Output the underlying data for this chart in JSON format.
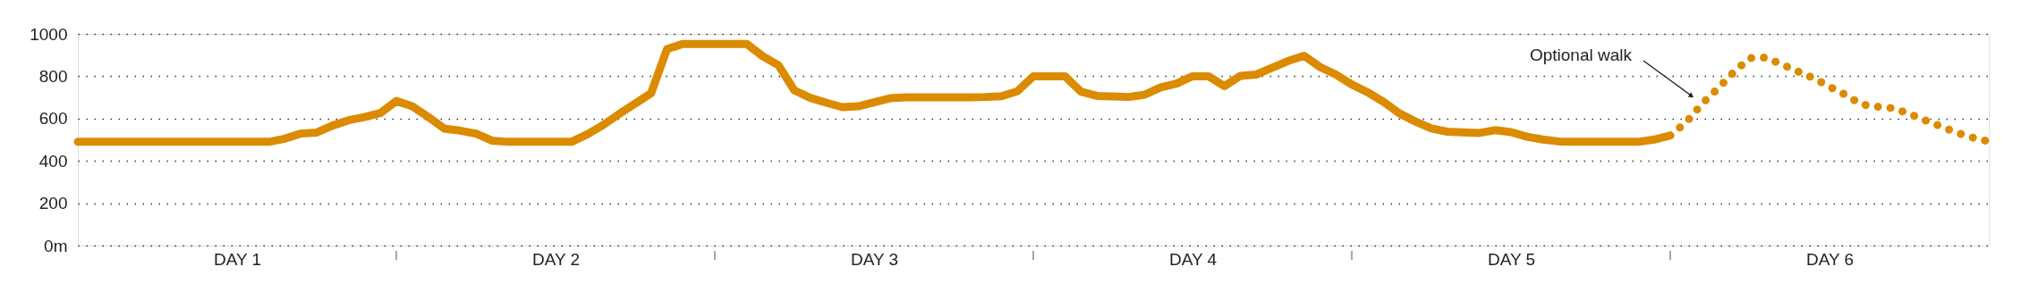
{
  "chart_data": {
    "type": "line",
    "categories": [
      null,
      null,
      null,
      null,
      null,
      null,
      null,
      null,
      null,
      null,
      "DAY 1",
      null,
      null,
      null,
      null,
      null,
      null,
      null,
      null,
      null,
      null,
      null,
      null,
      null,
      null,
      null,
      null,
      null,
      null,
      null,
      "DAY 2",
      null,
      null,
      null,
      null,
      null,
      null,
      null,
      null,
      null,
      null,
      null,
      null,
      null,
      null,
      null,
      null,
      null,
      null,
      null,
      "DAY 3",
      null,
      null,
      null,
      null,
      null,
      null,
      null,
      null,
      null,
      null,
      null,
      null,
      null,
      null,
      null,
      null,
      null,
      null,
      null,
      "DAY 4",
      null,
      null,
      null,
      null,
      null,
      null,
      null,
      null,
      null,
      null,
      null,
      null,
      null,
      null,
      null,
      null,
      null,
      null,
      null,
      "DAY 5",
      null,
      null,
      null,
      null,
      null,
      null,
      null,
      null,
      null,
      null,
      null,
      null,
      null,
      null,
      null,
      null,
      null,
      null,
      null,
      "DAY 6",
      null,
      null,
      null,
      null,
      null,
      null,
      null,
      null,
      null,
      null
    ],
    "ylim": [
      0,
      1000
    ],
    "yticks": [
      {
        "value": 0,
        "label": "0m"
      },
      200,
      400,
      600,
      800,
      1000
    ],
    "grid": "y",
    "marker": "none",
    "line_style": "solid",
    "series": [
      {
        "color": "#db8b00",
        "values": [
          490,
          490,
          490,
          490,
          490,
          490,
          490,
          490,
          490,
          490,
          490,
          490,
          490,
          505,
          529,
          534,
          567,
          592,
          607,
          626,
          683,
          658,
          608,
          553,
          543,
          529,
          496,
          490,
          490,
          490,
          490,
          490,
          526,
          570,
          622,
          671,
          720,
          928,
          953,
          953,
          953,
          953,
          953,
          895,
          852,
          733,
          698,
          675,
          654,
          658,
          677,
          696,
          700,
          700,
          700,
          700,
          700,
          702,
          706,
          729,
          800,
          800,
          800,
          727,
          707,
          705,
          702,
          713,
          747,
          765,
          800,
          800,
          753,
          802,
          808,
          840,
          872,
          897,
          844,
          808,
          761,
          724,
          679,
          624,
          586,
          553,
          538,
          535,
          532,
          545,
          536,
          514,
          501,
          492,
          490,
          490,
          490,
          490,
          490,
          501,
          520,
          null,
          null,
          null,
          null,
          null,
          null,
          null,
          null,
          null,
          null,
          null,
          null,
          null,
          null,
          null,
          null,
          null,
          null,
          null,
          null
        ]
      },
      {
        "color": "#db8b00",
        "line_style": "dotted",
        "values": [
          null,
          null,
          null,
          null,
          null,
          null,
          null,
          null,
          null,
          null,
          null,
          null,
          null,
          null,
          null,
          null,
          null,
          null,
          null,
          null,
          null,
          null,
          null,
          null,
          null,
          null,
          null,
          null,
          null,
          null,
          null,
          null,
          null,
          null,
          null,
          null,
          null,
          null,
          null,
          null,
          null,
          null,
          null,
          null,
          null,
          null,
          null,
          null,
          null,
          null,
          null,
          null,
          null,
          null,
          null,
          null,
          null,
          null,
          null,
          null,
          null,
          null,
          null,
          null,
          null,
          null,
          null,
          null,
          null,
          null,
          null,
          null,
          null,
          null,
          null,
          null,
          null,
          null,
          null,
          null,
          null,
          null,
          null,
          null,
          null,
          null,
          null,
          null,
          null,
          null,
          null,
          null,
          null,
          null,
          null,
          null,
          null,
          null,
          null,
          null,
          520,
          582,
          670,
          743,
          820,
          886,
          888,
          856,
          823,
          791,
          751,
          712,
          667,
          656,
          649,
          623,
          592,
          563,
          533,
          510,
          492
        ]
      }
    ],
    "annotations": [
      "Optional walk"
    ]
  }
}
